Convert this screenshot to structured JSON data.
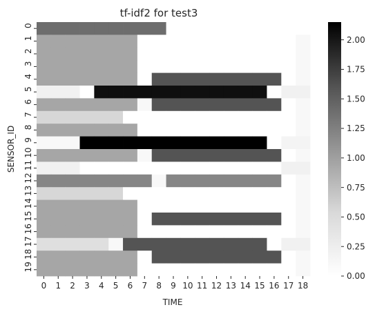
{
  "chart_data": {
    "type": "heatmap",
    "title": "tf-idf2 for test3",
    "xlabel": "TIME",
    "ylabel": "SENSOR_ID",
    "x_categories": [
      "0",
      "1",
      "2",
      "3",
      "4",
      "5",
      "6",
      "7",
      "8",
      "9",
      "10",
      "11",
      "12",
      "13",
      "14",
      "15",
      "16",
      "17",
      "18"
    ],
    "y_categories": [
      "0",
      "1",
      "2",
      "3",
      "4",
      "5",
      "6",
      "7",
      "8",
      "9",
      "10",
      "11",
      "12",
      "13",
      "14",
      "15",
      "16",
      "17",
      "18",
      "19"
    ],
    "colormap": "Greys",
    "vmin": 0.0,
    "vmax": 2.15,
    "colorbar_ticks": [
      "0.00",
      "0.25",
      "0.50",
      "0.75",
      "1.00",
      "1.25",
      "1.50",
      "1.75",
      "2.00"
    ],
    "colorbar_tick_values": [
      0.0,
      0.25,
      0.5,
      0.75,
      1.0,
      1.25,
      1.5,
      1.75,
      2.0
    ],
    "values": [
      [
        1.4,
        1.4,
        1.4,
        1.4,
        1.4,
        1.4,
        1.4,
        1.4,
        1.4,
        0,
        0,
        0,
        0,
        0,
        0,
        0,
        0,
        0,
        0
      ],
      [
        0.95,
        0.95,
        0.95,
        0.95,
        0.95,
        0.95,
        0.95,
        0,
        0,
        0,
        0,
        0,
        0,
        0,
        0,
        0,
        0,
        0,
        0.1
      ],
      [
        0.95,
        0.95,
        0.95,
        0.95,
        0.95,
        0.95,
        0.95,
        0,
        0,
        0,
        0,
        0,
        0,
        0,
        0,
        0,
        0,
        0,
        0.1
      ],
      [
        0.95,
        0.95,
        0.95,
        0.95,
        0.95,
        0.95,
        0.95,
        0,
        0,
        0,
        0,
        0,
        0,
        0,
        0,
        0,
        0,
        0,
        0.1
      ],
      [
        0.95,
        0.95,
        0.95,
        0.95,
        0.95,
        0.95,
        0.95,
        0,
        1.6,
        1.6,
        1.6,
        1.6,
        1.6,
        1.6,
        1.6,
        1.6,
        1.6,
        0,
        0.1
      ],
      [
        0.2,
        0.2,
        0.2,
        0,
        2.05,
        2.05,
        2.05,
        2.05,
        2.05,
        2.05,
        2.05,
        2.05,
        2.05,
        2.05,
        2.05,
        2.05,
        0,
        0.2,
        0.2
      ],
      [
        0.95,
        0.95,
        0.95,
        0.95,
        0.95,
        0.95,
        0.95,
        0.1,
        1.6,
        1.6,
        1.6,
        1.6,
        1.6,
        1.6,
        1.6,
        1.6,
        1.6,
        0,
        0.1
      ],
      [
        0.55,
        0.55,
        0.55,
        0.55,
        0.55,
        0.55,
        0,
        0,
        0,
        0,
        0,
        0,
        0,
        0,
        0,
        0,
        0,
        0,
        0.1
      ],
      [
        0.95,
        0.95,
        0.95,
        0.95,
        0.95,
        0.95,
        0.95,
        0,
        0,
        0,
        0,
        0,
        0,
        0,
        0,
        0,
        0,
        0,
        0.1
      ],
      [
        0.1,
        0.1,
        0.1,
        2.15,
        2.15,
        2.15,
        2.15,
        2.15,
        2.15,
        2.15,
        2.15,
        2.15,
        2.15,
        2.15,
        2.15,
        2.15,
        0,
        0.15,
        0.15
      ],
      [
        0.95,
        0.95,
        0.95,
        0.95,
        0.95,
        0.95,
        0.95,
        0.1,
        1.6,
        1.6,
        1.6,
        1.6,
        1.6,
        1.6,
        1.6,
        1.6,
        1.6,
        0,
        0.1
      ],
      [
        0.2,
        0.2,
        0.2,
        0,
        0,
        0,
        0,
        0,
        0,
        0,
        0,
        0,
        0,
        0,
        0,
        0,
        0,
        0.2,
        0.2
      ],
      [
        1.2,
        1.2,
        1.2,
        1.2,
        1.2,
        1.2,
        1.2,
        1.2,
        0.1,
        1.2,
        1.2,
        1.2,
        1.2,
        1.2,
        1.2,
        1.2,
        1.2,
        0,
        0.1
      ],
      [
        0.55,
        0.55,
        0.55,
        0.55,
        0.55,
        0.55,
        0,
        0,
        0,
        0,
        0,
        0,
        0,
        0,
        0,
        0,
        0,
        0,
        0.1
      ],
      [
        0.95,
        0.95,
        0.95,
        0.95,
        0.95,
        0.95,
        0.95,
        0,
        0,
        0,
        0,
        0,
        0,
        0,
        0,
        0,
        0,
        0,
        0.1
      ],
      [
        0.95,
        0.95,
        0.95,
        0.95,
        0.95,
        0.95,
        0.95,
        0,
        1.6,
        1.6,
        1.6,
        1.6,
        1.6,
        1.6,
        1.6,
        1.6,
        1.6,
        0,
        0.1
      ],
      [
        0.95,
        0.95,
        0.95,
        0.95,
        0.95,
        0.95,
        0.95,
        0,
        0,
        0,
        0,
        0,
        0,
        0,
        0,
        0,
        0,
        0,
        0.1
      ],
      [
        0.45,
        0.45,
        0.45,
        0.45,
        0.45,
        0.1,
        1.6,
        1.6,
        1.6,
        1.6,
        1.6,
        1.6,
        1.6,
        1.6,
        1.6,
        1.6,
        0,
        0.2,
        0.2
      ],
      [
        0.95,
        0.95,
        0.95,
        0.95,
        0.95,
        0.95,
        0.95,
        0,
        1.6,
        1.6,
        1.6,
        1.6,
        1.6,
        1.6,
        1.6,
        1.6,
        1.6,
        0,
        0.1
      ],
      [
        0.95,
        0.95,
        0.95,
        0.95,
        0.95,
        0.95,
        0.95,
        0,
        0,
        0,
        0,
        0,
        0,
        0,
        0,
        0,
        0,
        0,
        0.1
      ]
    ]
  }
}
